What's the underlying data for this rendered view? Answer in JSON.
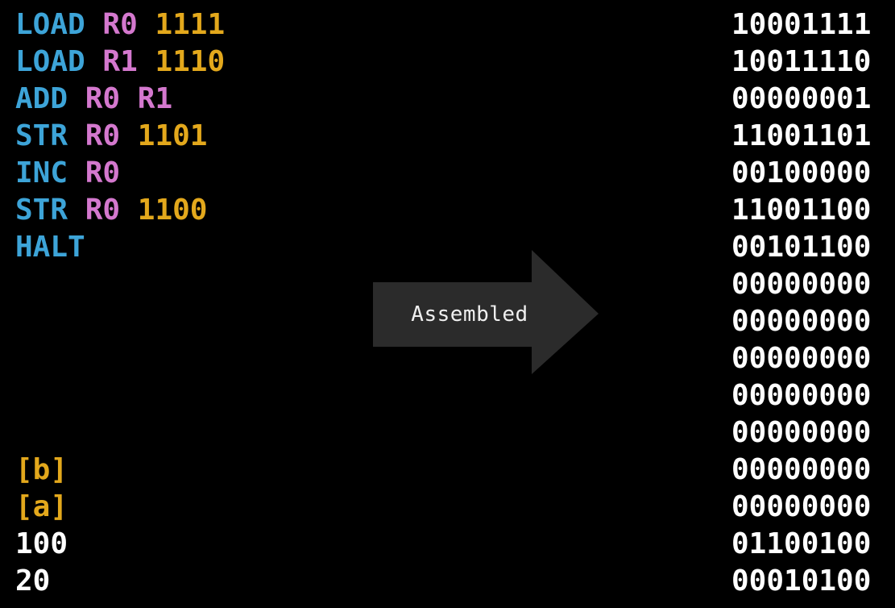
{
  "assembly": {
    "lines": [
      {
        "tokens": [
          {
            "text": "LOAD",
            "role": "mnemonic"
          },
          {
            "text": "R0",
            "role": "register"
          },
          {
            "text": "1111",
            "role": "operand"
          }
        ]
      },
      {
        "tokens": [
          {
            "text": "LOAD",
            "role": "mnemonic"
          },
          {
            "text": "R1",
            "role": "register"
          },
          {
            "text": "1110",
            "role": "operand"
          }
        ]
      },
      {
        "tokens": [
          {
            "text": "ADD",
            "role": "mnemonic"
          },
          {
            "text": "R0",
            "role": "register"
          },
          {
            "text": "R1",
            "role": "register"
          }
        ]
      },
      {
        "tokens": [
          {
            "text": "STR",
            "role": "mnemonic"
          },
          {
            "text": "R0",
            "role": "register"
          },
          {
            "text": "1101",
            "role": "operand"
          }
        ]
      },
      {
        "tokens": [
          {
            "text": "INC",
            "role": "mnemonic"
          },
          {
            "text": "R0",
            "role": "register"
          }
        ]
      },
      {
        "tokens": [
          {
            "text": "STR",
            "role": "mnemonic"
          },
          {
            "text": "R0",
            "role": "register"
          },
          {
            "text": "1100",
            "role": "operand"
          }
        ]
      },
      {
        "tokens": [
          {
            "text": "HALT",
            "role": "mnemonic"
          }
        ]
      },
      {
        "tokens": []
      },
      {
        "tokens": []
      },
      {
        "tokens": []
      },
      {
        "tokens": []
      },
      {
        "tokens": []
      },
      {
        "tokens": [
          {
            "text": "[b]",
            "role": "label"
          }
        ]
      },
      {
        "tokens": [
          {
            "text": "[a]",
            "role": "label"
          }
        ]
      },
      {
        "tokens": [
          {
            "text": "100",
            "role": "value"
          }
        ]
      },
      {
        "tokens": [
          {
            "text": "20",
            "role": "value"
          }
        ]
      }
    ]
  },
  "machine_code": {
    "lines": [
      "10001111",
      "10011110",
      "00000001",
      "11001101",
      "00100000",
      "11001100",
      "00101100",
      "00000000",
      "00000000",
      "00000000",
      "00000000",
      "00000000",
      "00000000",
      "00000000",
      "01100100",
      "00010100"
    ]
  },
  "arrow": {
    "label": "Assembled"
  },
  "colors": {
    "background": "#000000",
    "mnemonic": "#3da4d8",
    "register": "#d478ce",
    "operand": "#e3a81c",
    "label": "#e3a81c",
    "value": "#ffffff",
    "binary": "#ffffff",
    "arrow_fill": "#2b2b2b",
    "arrow_text": "#efefef"
  }
}
